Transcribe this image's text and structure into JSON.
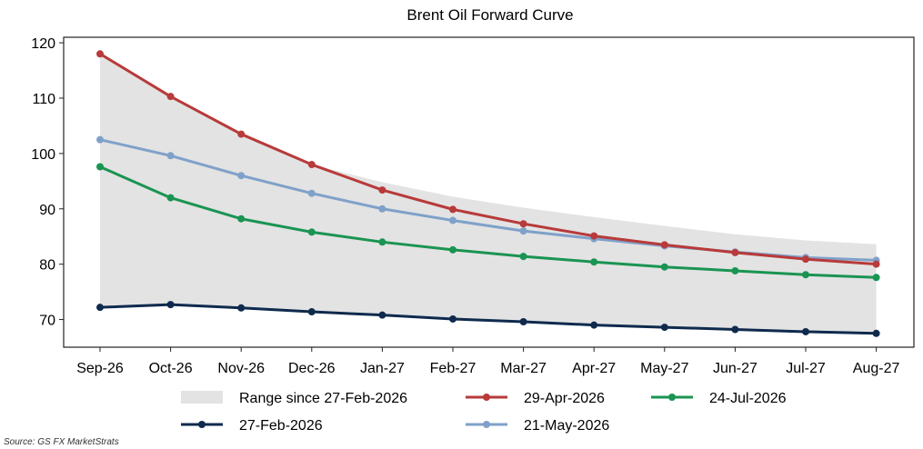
{
  "chart_data": {
    "type": "line",
    "title": "Brent Oil Forward Curve",
    "xlabel": "",
    "ylabel": "",
    "categories": [
      "Sep-26",
      "Oct-26",
      "Nov-26",
      "Dec-26",
      "Jan-27",
      "Feb-27",
      "Mar-27",
      "Apr-27",
      "May-27",
      "Jun-27",
      "Jul-27",
      "Aug-27"
    ],
    "ylim": [
      65,
      121
    ],
    "yticks": [
      70,
      80,
      90,
      100,
      110,
      120
    ],
    "grid": false,
    "legend_position": "bottom",
    "range_band": {
      "name": "Range since 27-Feb-2026",
      "color": "#e3e3e3",
      "low": [
        72.2,
        72.7,
        72.1,
        71.4,
        70.8,
        70.1,
        69.6,
        69.0,
        68.6,
        68.2,
        67.8,
        67.5
      ],
      "high": [
        118.0,
        110.3,
        103.6,
        98.0,
        94.8,
        92.2,
        90.2,
        88.5,
        86.9,
        85.4,
        84.3,
        83.6
      ]
    },
    "series": [
      {
        "name": "29-Apr-2026",
        "color": "#b83a3a",
        "values": [
          118.0,
          110.3,
          103.5,
          98.0,
          93.4,
          89.9,
          87.3,
          85.1,
          83.5,
          82.1,
          80.9,
          80.0
        ]
      },
      {
        "name": "24-Jul-2026",
        "color": "#1a9452",
        "values": [
          97.6,
          92.0,
          88.2,
          85.8,
          84.0,
          82.6,
          81.4,
          80.4,
          79.5,
          78.8,
          78.1,
          77.6
        ]
      },
      {
        "name": "27-Feb-2026",
        "color": "#0f2a4d",
        "values": [
          72.2,
          72.7,
          72.1,
          71.4,
          70.8,
          70.1,
          69.6,
          69.0,
          68.6,
          68.2,
          67.8,
          67.5
        ]
      },
      {
        "name": "21-May-2026",
        "color": "#7fa1c9",
        "values": [
          102.5,
          99.6,
          96.0,
          92.8,
          90.0,
          87.9,
          86.0,
          84.6,
          83.3,
          82.2,
          81.2,
          80.7
        ]
      }
    ],
    "legend_order": [
      "Range since 27-Feb-2026",
      "29-Apr-2026",
      "24-Jul-2026",
      "27-Feb-2026",
      "21-May-2026"
    ]
  },
  "source": "Source: GS FX MarketStrats"
}
